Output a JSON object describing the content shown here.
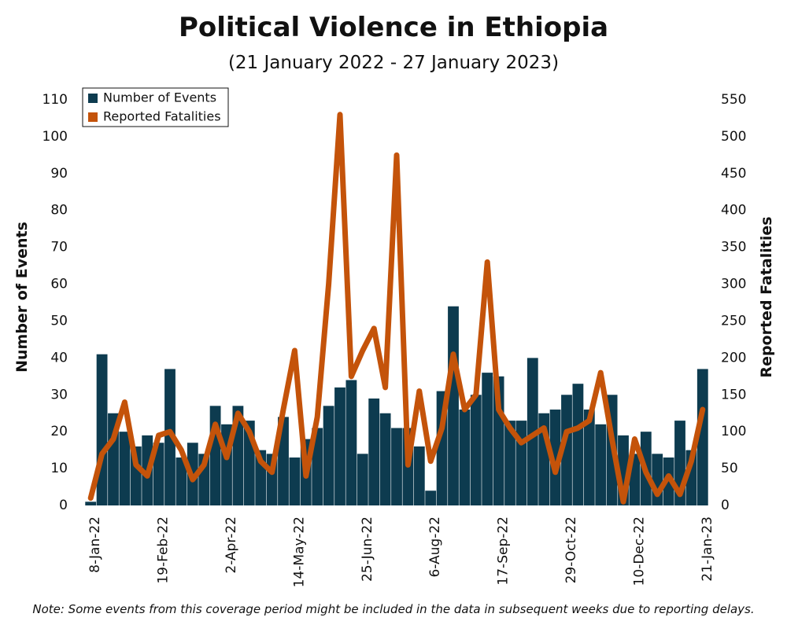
{
  "chart_data": {
    "type": "bar-line",
    "title": "Political Violence in Ethiopia",
    "subtitle": "(21 January 2022 - 27 January 2023)",
    "y_label": "Number of Events",
    "y2_label": "Reported Fatalities",
    "note": "Note: Some events from this coverage period might be included in the data in subsequent weeks due to reporting delays.",
    "categories": [
      "8-Jan-22",
      null,
      null,
      null,
      null,
      null,
      "19-Feb-22",
      null,
      null,
      null,
      null,
      null,
      "2-Apr-22",
      null,
      null,
      null,
      null,
      null,
      "14-May-22",
      null,
      null,
      null,
      null,
      null,
      "25-Jun-22",
      null,
      null,
      null,
      null,
      null,
      "6-Aug-22",
      null,
      null,
      null,
      null,
      null,
      "17-Sep-22",
      null,
      null,
      null,
      null,
      null,
      "29-Oct-22",
      null,
      null,
      null,
      null,
      null,
      "10-Dec-22",
      null,
      null,
      null,
      null,
      null,
      "21-Jan-23"
    ],
    "series": [
      {
        "name": "Number of Events",
        "type": "bar",
        "color": "#0d3b4f",
        "values": [
          1,
          41,
          25,
          20,
          16,
          19,
          17,
          37,
          13,
          17,
          14,
          27,
          22,
          27,
          23,
          15,
          14,
          24,
          13,
          18,
          21,
          27,
          32,
          34,
          14,
          29,
          25,
          21,
          21,
          16,
          4,
          31,
          54,
          26,
          30,
          36,
          35,
          23,
          23,
          40,
          25,
          26,
          30,
          33,
          26,
          22,
          30,
          19,
          14,
          20,
          14,
          13,
          23,
          15,
          37
        ]
      },
      {
        "name": "Reported Fatalities",
        "type": "line",
        "axis": "y2",
        "color": "#c4530a",
        "values": [
          10,
          70,
          90,
          140,
          55,
          40,
          95,
          100,
          75,
          35,
          55,
          110,
          65,
          125,
          100,
          60,
          45,
          130,
          210,
          40,
          120,
          300,
          530,
          175,
          210,
          240,
          160,
          475,
          55,
          155,
          60,
          105,
          205,
          130,
          150,
          330,
          130,
          105,
          85,
          95,
          105,
          45,
          100,
          105,
          115,
          180,
          90,
          5,
          90,
          45,
          15,
          40,
          15,
          60,
          130
        ]
      }
    ],
    "ylim": [
      0,
      110
    ],
    "yticks": [
      0,
      10,
      20,
      30,
      40,
      50,
      60,
      70,
      80,
      90,
      100,
      110
    ],
    "y2lim": [
      0,
      550
    ],
    "y2ticks": [
      0,
      50,
      100,
      150,
      200,
      250,
      300,
      350,
      400,
      450,
      500,
      550
    ],
    "legend": "upper left"
  }
}
